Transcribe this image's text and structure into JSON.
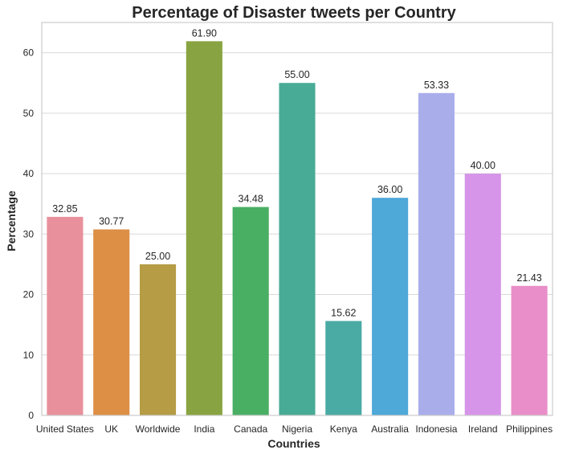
{
  "chart_data": {
    "type": "bar",
    "title": "Percentage of Disaster tweets per Country",
    "xlabel": "Countries",
    "ylabel": "Percentage",
    "ylim": [
      0,
      65
    ],
    "yticks": [
      0,
      10,
      20,
      30,
      40,
      50,
      60
    ],
    "grid": "horizontal",
    "categories": [
      "United States",
      "UK",
      "Worldwide",
      "India",
      "Canada",
      "Nigeria",
      "Kenya",
      "Australia",
      "Indonesia",
      "Ireland",
      "Philippines"
    ],
    "values": [
      32.85,
      30.77,
      25.0,
      61.9,
      34.48,
      55.0,
      15.62,
      36.0,
      53.33,
      40.0,
      21.43
    ],
    "value_labels": [
      "32.85",
      "30.77",
      "25.00",
      "61.90",
      "34.48",
      "55.00",
      "15.62",
      "36.00",
      "53.33",
      "40.00",
      "21.43"
    ],
    "colors": [
      "#e8919c",
      "#dd8f45",
      "#b59c45",
      "#88a442",
      "#49af63",
      "#48ab96",
      "#4aaaa4",
      "#4ea8d8",
      "#a9aeea",
      "#d695e8",
      "#e98ec8"
    ]
  }
}
